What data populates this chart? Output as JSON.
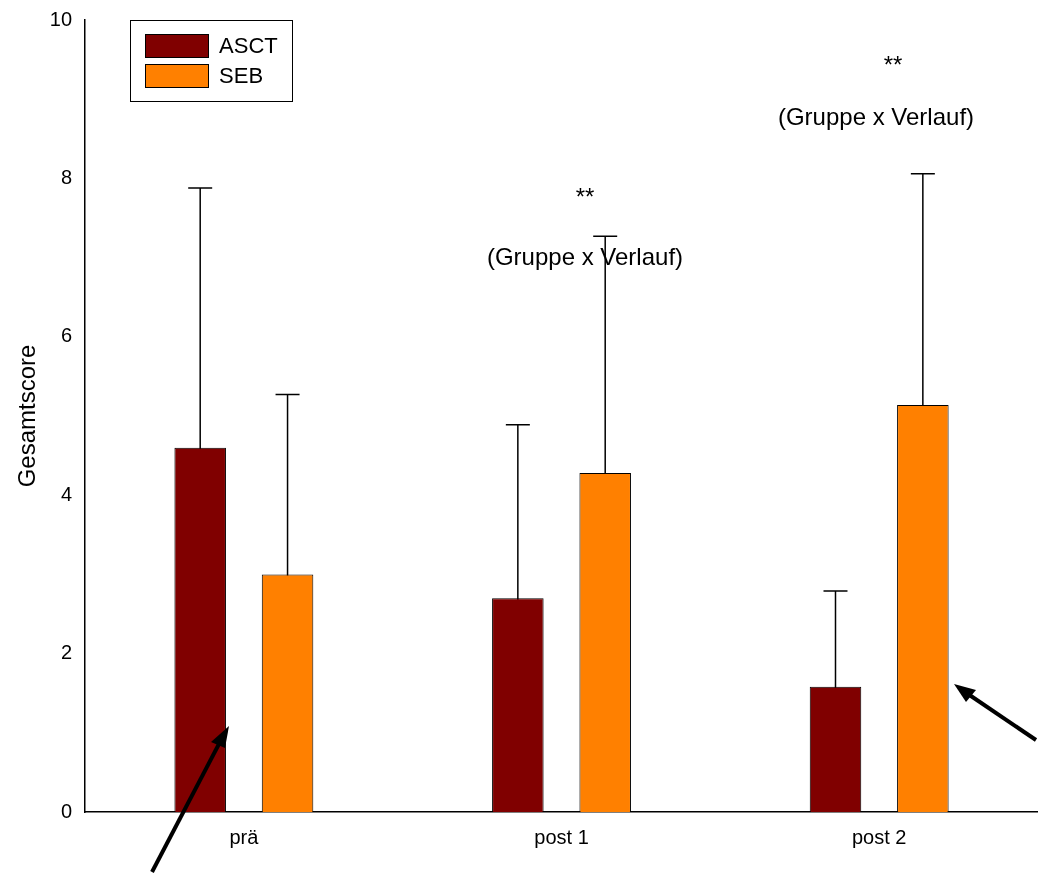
{
  "chart_data": {
    "type": "bar",
    "ylabel": "Gesamtscore",
    "categories": [
      "prä",
      "post 1",
      "post 2"
    ],
    "series": [
      {
        "name": "ASCT",
        "color": "#800000",
        "values": [
          4.6,
          2.7,
          1.58
        ],
        "errors": [
          3.28,
          2.19,
          1.21
        ]
      },
      {
        "name": "SEB",
        "color": "#ff8000",
        "values": [
          3.0,
          4.28,
          5.14
        ],
        "errors": [
          2.27,
          2.99,
          2.92
        ]
      }
    ],
    "ylim": [
      0,
      10
    ],
    "yticks": [
      0,
      2,
      4,
      6,
      8,
      10
    ],
    "grid": false,
    "legend": "top left",
    "annotations": [
      "**",
      "(Gruppe x Verlauf)",
      "**",
      "(Gruppe x Verlauf)"
    ]
  }
}
